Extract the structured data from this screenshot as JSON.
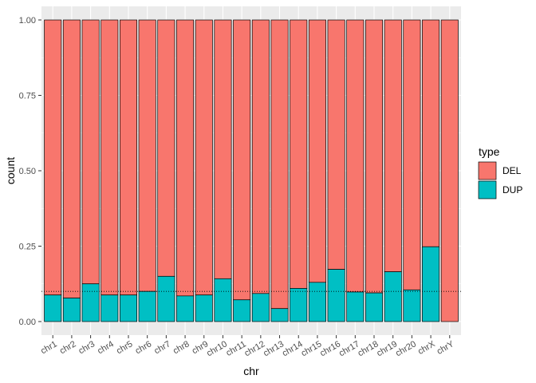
{
  "chart_data": {
    "type": "bar",
    "stacked": true,
    "xlabel": "chr",
    "ylabel": "count",
    "ylim": [
      0,
      1
    ],
    "yticks": [
      "0.00",
      "0.25",
      "0.50",
      "0.75",
      "1.00"
    ],
    "categories": [
      "chr1",
      "chr2",
      "chr3",
      "chr4",
      "chr5",
      "chr6",
      "chr7",
      "chr8",
      "chr9",
      "chr10",
      "chr11",
      "chr12",
      "chr13",
      "chr14",
      "chr15",
      "chr16",
      "chr17",
      "chr18",
      "chr19",
      "chr20",
      "chrX",
      "chrY"
    ],
    "series": [
      {
        "name": "DUP",
        "color": "#00BFC4",
        "values": [
          0.088,
          0.078,
          0.125,
          0.088,
          0.088,
          0.1,
          0.15,
          0.085,
          0.088,
          0.142,
          0.072,
          0.093,
          0.043,
          0.11,
          0.13,
          0.173,
          0.098,
          0.095,
          0.165,
          0.105,
          0.248,
          0.0
        ]
      },
      {
        "name": "DEL",
        "color": "#F8766D",
        "values": [
          0.912,
          0.922,
          0.875,
          0.912,
          0.912,
          0.9,
          0.85,
          0.915,
          0.912,
          0.858,
          0.928,
          0.907,
          0.957,
          0.89,
          0.87,
          0.827,
          0.902,
          0.905,
          0.835,
          0.895,
          0.752,
          1.0
        ]
      }
    ],
    "reference_line": {
      "y": 0.1,
      "style": "dotted"
    },
    "legend": {
      "title": "type",
      "placement": "right",
      "entries": [
        "DEL",
        "DUP"
      ]
    },
    "grid": true
  }
}
